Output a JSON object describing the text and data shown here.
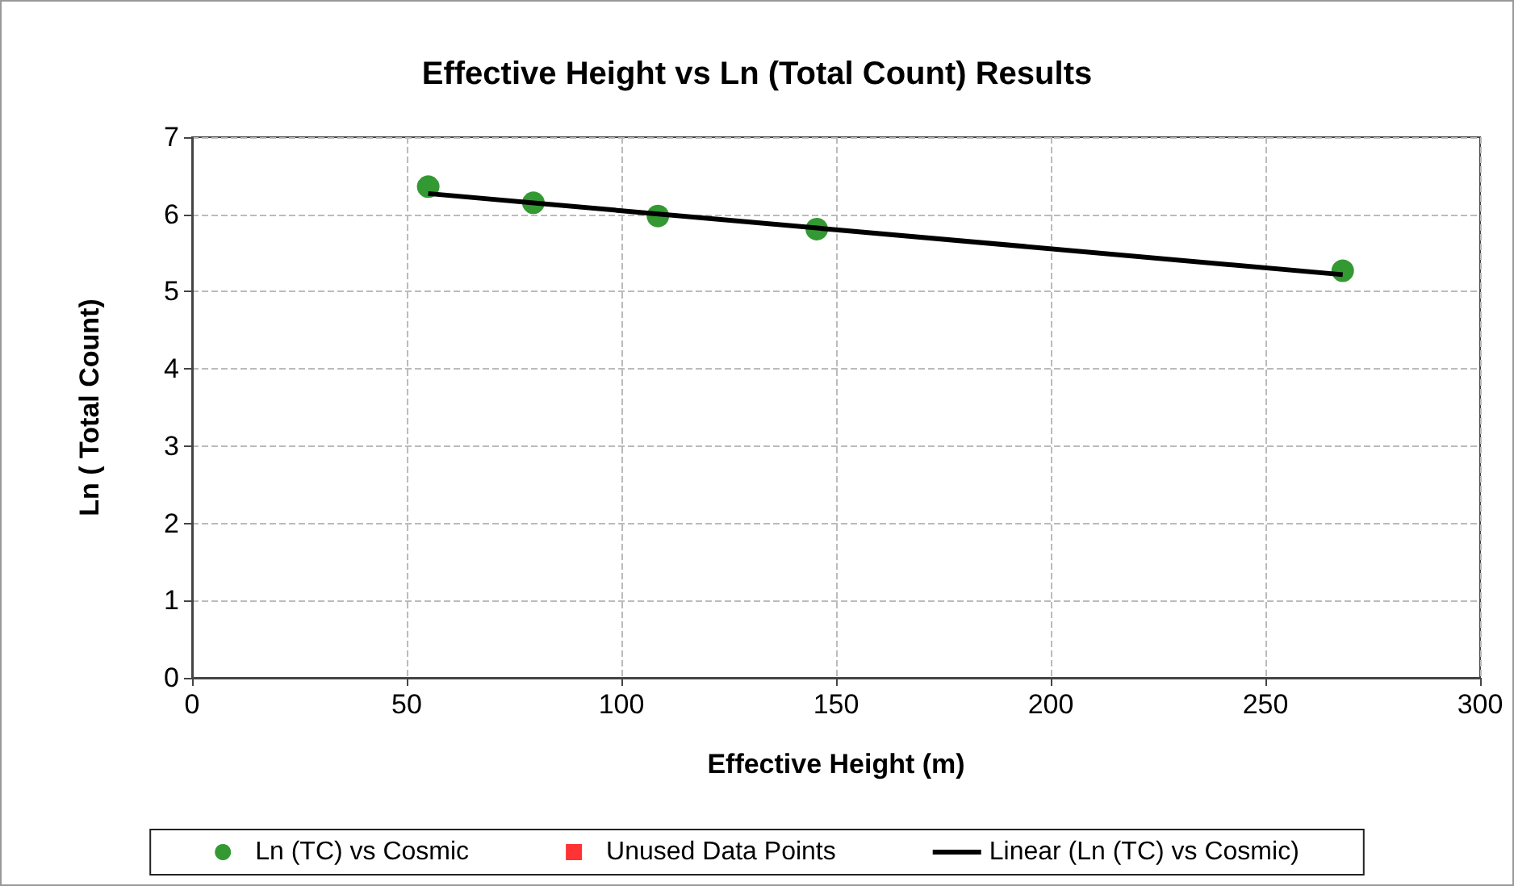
{
  "chart_data": {
    "type": "scatter",
    "title": "Effective Height vs Ln (Total Count) Results",
    "xlabel": "Effective Height (m)",
    "ylabel": "Ln ( Total Count)",
    "xlim": [
      0,
      300
    ],
    "xticks": [
      0,
      50,
      100,
      150,
      200,
      250,
      300
    ],
    "ylim": [
      0,
      7
    ],
    "yticks": [
      0,
      1,
      2,
      3,
      4,
      5,
      6,
      7
    ],
    "grid": true,
    "legend": "bottom",
    "series": [
      {
        "name": "Ln (TC) vs Cosmic",
        "color": "#008000",
        "marker": "circle",
        "x": [
          55,
          79.5,
          108.5,
          145.5,
          268
        ],
        "values": [
          6.36,
          6.15,
          5.98,
          5.81,
          5.27
        ]
      },
      {
        "name": "Unused Data Points",
        "color": "#ff0000",
        "marker": "square"
      },
      {
        "name": "Linear (Ln (TC) vs Cosmic)",
        "type": "line",
        "color": "#000000",
        "marker": "none",
        "x": [
          55,
          268
        ],
        "values": [
          6.27,
          5.22
        ]
      }
    ]
  }
}
